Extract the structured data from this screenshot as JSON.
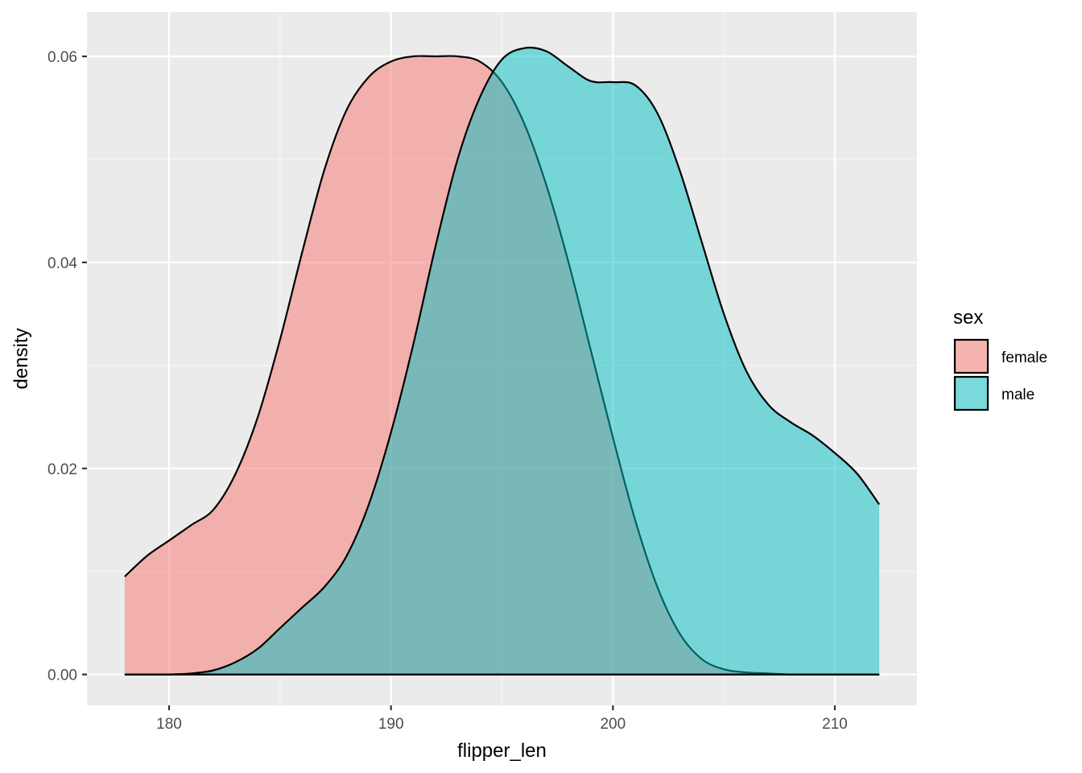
{
  "chart_data": {
    "type": "area",
    "subtype": "density",
    "xlabel": "flipper_len",
    "ylabel": "density",
    "xlim": [
      176.3,
      213.7
    ],
    "ylim": [
      -0.003,
      0.0643
    ],
    "x_ticks": [
      180,
      190,
      200,
      210
    ],
    "y_ticks": [
      0.0,
      0.02,
      0.04,
      0.06
    ],
    "x_tick_labels": [
      "180",
      "190",
      "200",
      "210"
    ],
    "y_tick_labels": [
      "0.00",
      "0.02",
      "0.04",
      "0.06"
    ],
    "grid": true,
    "legend": {
      "title": "sex",
      "position": "right"
    },
    "series": [
      {
        "name": "female",
        "color": "#F8766D",
        "x": [
          178,
          179,
          180,
          181,
          182,
          183,
          184,
          185,
          186,
          187,
          188,
          189,
          190,
          191,
          192,
          193,
          194,
          195,
          196,
          197,
          198,
          199,
          200,
          201,
          202,
          203,
          204,
          205,
          206,
          207,
          208,
          209,
          210,
          211,
          212
        ],
        "values": [
          0.0095,
          0.0115,
          0.013,
          0.0145,
          0.016,
          0.0195,
          0.025,
          0.0325,
          0.041,
          0.049,
          0.0548,
          0.058,
          0.0595,
          0.06,
          0.06,
          0.06,
          0.0595,
          0.0575,
          0.0535,
          0.0475,
          0.04,
          0.0315,
          0.023,
          0.015,
          0.0085,
          0.004,
          0.0015,
          0.0005,
          0.0002,
          0.0001,
          0.0,
          0.0,
          0.0,
          0.0,
          0.0
        ]
      },
      {
        "name": "male",
        "color": "#00BFC4",
        "x": [
          178,
          179,
          180,
          181,
          182,
          183,
          184,
          185,
          186,
          187,
          188,
          189,
          190,
          191,
          192,
          193,
          194,
          195,
          196,
          197,
          198,
          199,
          200,
          201,
          202,
          203,
          204,
          205,
          206,
          207,
          208,
          209,
          210,
          211,
          212
        ],
        "values": [
          0.0,
          0.0,
          0.0,
          0.0001,
          0.0004,
          0.0012,
          0.0025,
          0.0045,
          0.0065,
          0.0085,
          0.0115,
          0.0165,
          0.0235,
          0.032,
          0.0415,
          0.05,
          0.056,
          0.0597,
          0.0608,
          0.0605,
          0.059,
          0.0576,
          0.0575,
          0.0572,
          0.0545,
          0.049,
          0.042,
          0.035,
          0.0295,
          0.0262,
          0.0245,
          0.0232,
          0.0215,
          0.0195,
          0.0165
        ]
      }
    ]
  }
}
